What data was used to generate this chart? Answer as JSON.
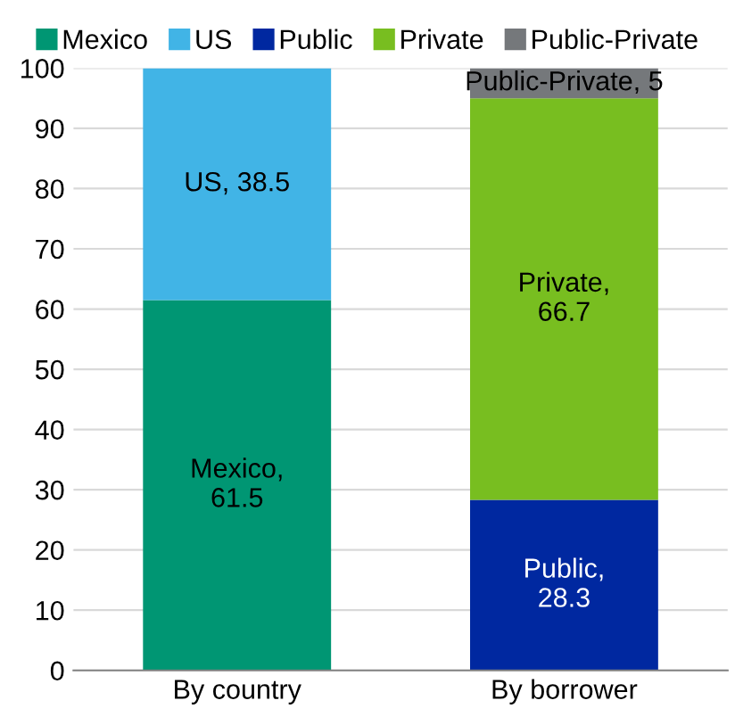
{
  "chart_data": {
    "type": "bar",
    "stacked": true,
    "categories": [
      "By country",
      "By borrower"
    ],
    "series": [
      {
        "name": "Mexico",
        "color": "#009673",
        "values": [
          61.5,
          null
        ],
        "value_labels": [
          "Mexico,\n61.5",
          null
        ]
      },
      {
        "name": "US",
        "color": "#41b4e6",
        "values": [
          38.5,
          null
        ],
        "value_labels": [
          "US, 38.5",
          null
        ]
      },
      {
        "name": "Public",
        "color": "#0028a0",
        "values": [
          null,
          28.3
        ],
        "value_labels": [
          null,
          "Public,\n28.3"
        ]
      },
      {
        "name": "Private",
        "color": "#78be20",
        "values": [
          null,
          66.7
        ],
        "value_labels": [
          null,
          "Private,\n66.7"
        ]
      },
      {
        "name": "Public-Private",
        "color": "#75787b",
        "values": [
          null,
          5
        ],
        "value_labels": [
          null,
          "Public-Private, 5"
        ]
      }
    ],
    "ylim": [
      0,
      100
    ],
    "yticks": [
      0,
      10,
      20,
      30,
      40,
      50,
      60,
      70,
      80,
      90,
      100
    ],
    "grid": "y",
    "legend": "top"
  }
}
